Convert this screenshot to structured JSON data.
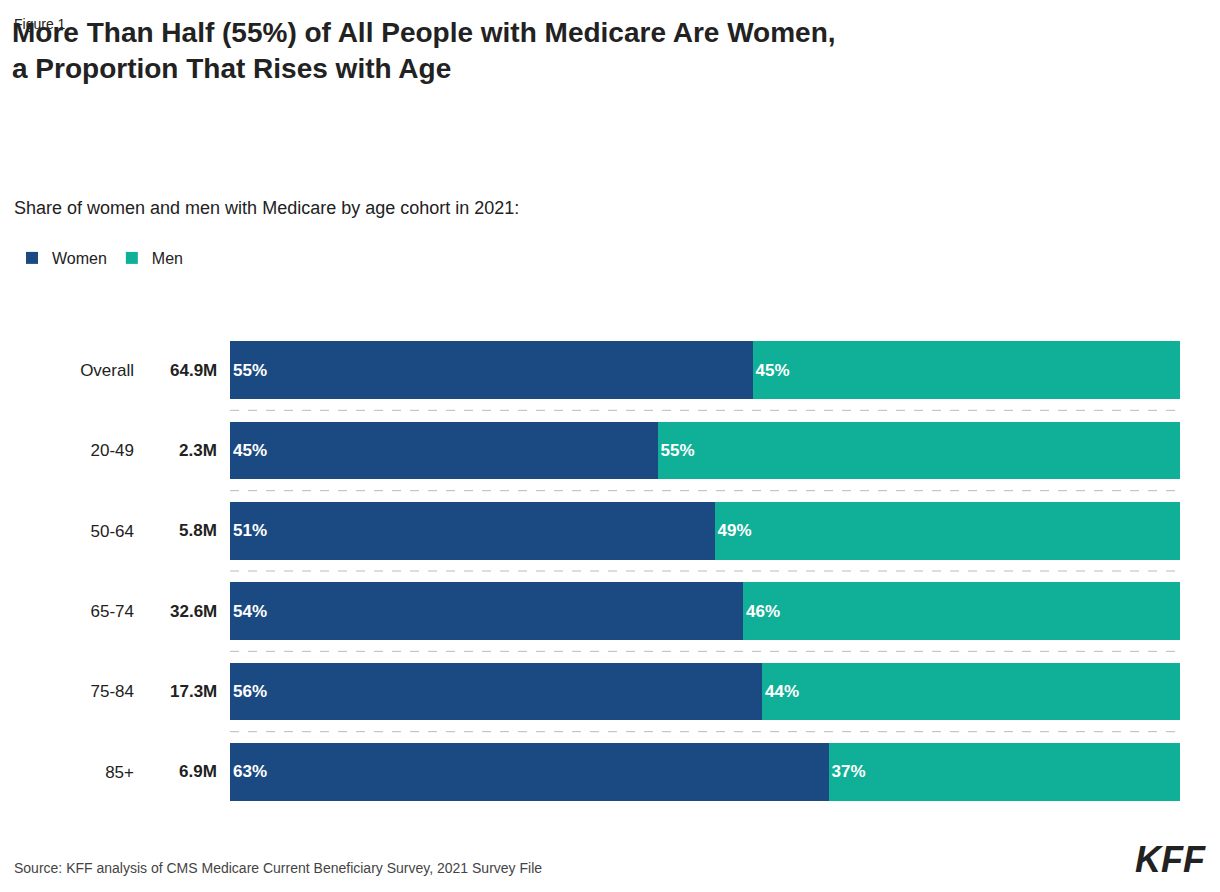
{
  "chart_data": {
    "type": "bar",
    "orientation": "horizontal",
    "stacked": true,
    "figure_label": "Figure 1",
    "title": "More Than Half (55%) of All People with Medicare Are Women,\na Proportion That Rises with Age",
    "subtitle": "Share of women and men with Medicare by age cohort in 2021:",
    "categories": [
      "Overall",
      "20-49",
      "50-64",
      "65-74",
      "75-84",
      "85+"
    ],
    "series": [
      {
        "name": "Women",
        "color": "#1b4a82",
        "values": [
          55,
          45,
          51,
          54,
          56,
          63
        ],
        "value_labels": [
          "55%",
          "45%",
          "51%",
          "54%",
          "56%",
          "63%"
        ]
      },
      {
        "name": "Men",
        "color": "#10b098",
        "values": [
          45,
          55,
          49,
          46,
          44,
          37
        ],
        "value_labels": [
          "45%",
          "55%",
          "49%",
          "46%",
          "44%",
          "37%"
        ]
      }
    ],
    "totals": [
      64.9,
      2.3,
      5.8,
      32.6,
      17.3,
      6.9
    ],
    "total_labels": [
      "64.9M",
      "2.3M",
      "5.8M",
      "32.6M",
      "17.3M",
      "6.9M"
    ],
    "data_labels": true,
    "xlim": [
      0,
      100
    ],
    "xticks": [],
    "tick_labels": "y",
    "grid": false,
    "legend": "top left",
    "source": "Source: KFF analysis of CMS Medicare Current Beneficiary Survey, 2021 Survey File",
    "annotations": [
      "KFF"
    ]
  }
}
